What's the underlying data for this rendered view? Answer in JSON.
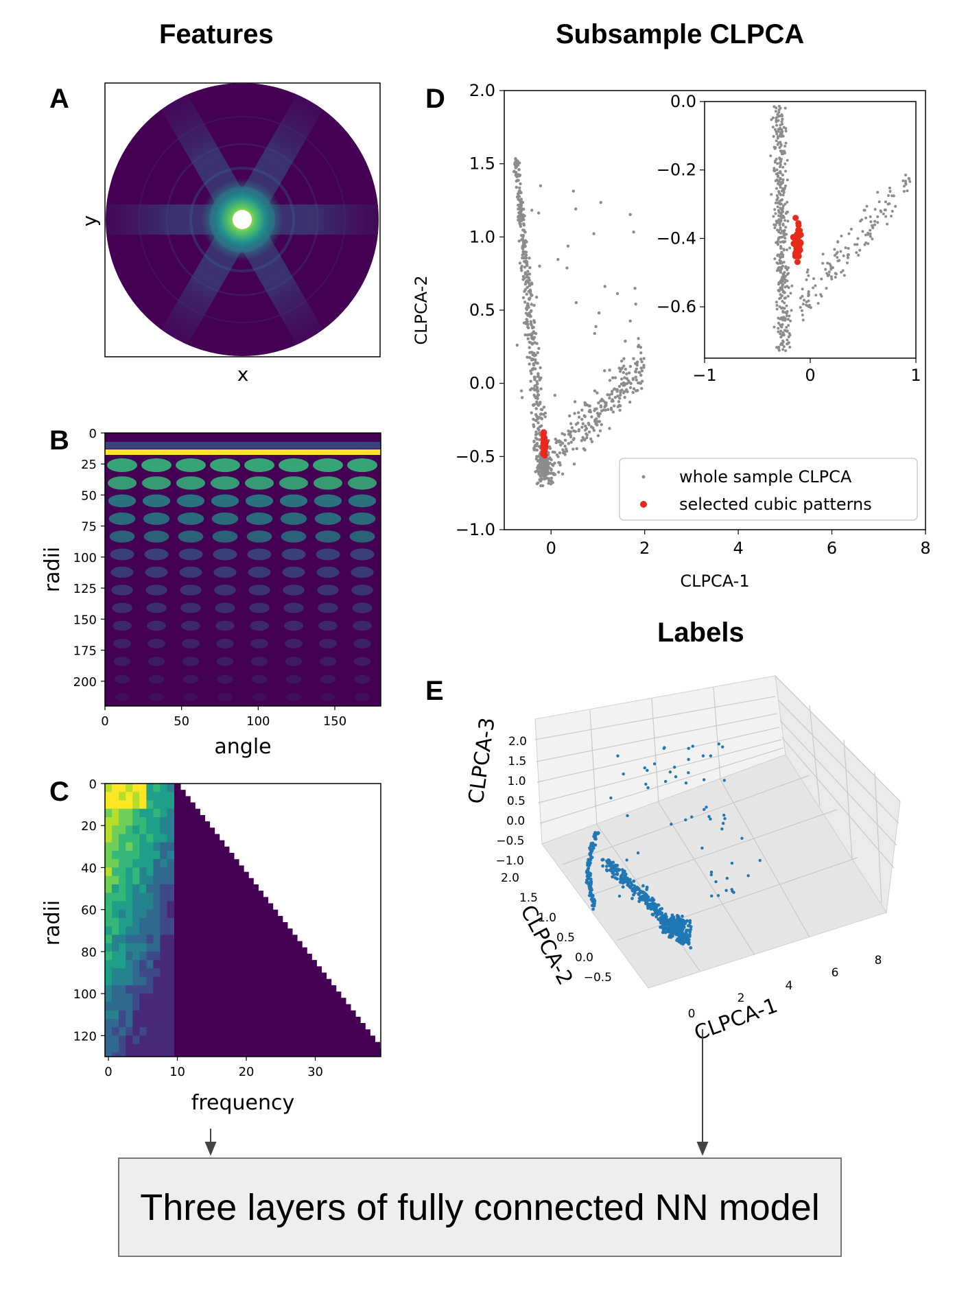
{
  "titles": {
    "features": "Features",
    "subsample": "Subsample CLPCA",
    "labels": "Labels"
  },
  "panels": {
    "a": {
      "letter": "A",
      "xlabel": "x",
      "ylabel": "y"
    },
    "b": {
      "letter": "B",
      "xlabel": "angle",
      "ylabel": "radii",
      "xticks": [
        "0",
        "50",
        "100",
        "150"
      ],
      "yticks": [
        "0",
        "25",
        "50",
        "75",
        "100",
        "125",
        "150",
        "175",
        "200"
      ]
    },
    "c": {
      "letter": "C",
      "xlabel": "frequency",
      "ylabel": "radii",
      "xticks": [
        "0",
        "10",
        "20",
        "30"
      ],
      "yticks": [
        "0",
        "20",
        "40",
        "60",
        "80",
        "100",
        "120"
      ]
    },
    "d": {
      "letter": "D",
      "xlabel": "CLPCA-1",
      "ylabel": "CLPCA-2",
      "xticks": [
        "0",
        "2",
        "4",
        "6",
        "8"
      ],
      "yticks": [
        "2.0",
        "1.5",
        "1.0",
        "0.5",
        "0.0",
        "−0.5",
        "−1.0"
      ],
      "inset_xticks": [
        "−1",
        "0",
        "1"
      ],
      "inset_yticks": [
        "0.0",
        "−0.2",
        "−0.4",
        "−0.6"
      ],
      "legend": [
        "whole sample CLPCA",
        "selected cubic patterns"
      ]
    },
    "e": {
      "letter": "E",
      "xlabel": "CLPCA-1",
      "ylabel": "CLPCA-2",
      "zlabel": "CLPCA-3",
      "xticks": [
        "0",
        "2",
        "4",
        "6",
        "8"
      ],
      "yticks": [
        "−0.5",
        "0.0",
        "0.5",
        "1.0",
        "1.5",
        "2.0"
      ],
      "zticks": [
        "2.0",
        "1.5",
        "1.0",
        "0.5",
        "0.0",
        "−0.5",
        "−1.0"
      ]
    }
  },
  "model_box": {
    "text": "Three layers of fully connected NN model"
  },
  "colors": {
    "viridis_dark": "#440154",
    "viridis_mid": "#21918c",
    "viridis_bright": "#fde725",
    "gray_points": "#8c8c8c",
    "red_points": "#e8291c",
    "blue_points": "#1f77b4"
  },
  "chart_data": [
    {
      "type": "heatmap",
      "title": "Features",
      "xlabel": "x",
      "ylabel": "y"
    },
    {
      "type": "heatmap",
      "xlabel": "angle",
      "ylabel": "radii",
      "xlim": [
        0,
        180
      ],
      "ylim": [
        220,
        0
      ]
    },
    {
      "type": "heatmap",
      "xlabel": "frequency",
      "ylabel": "radii",
      "xlim": [
        0,
        40
      ],
      "ylim": [
        130,
        0
      ]
    },
    {
      "type": "scatter",
      "title": "Subsample CLPCA",
      "xlabel": "CLPCA-1",
      "ylabel": "CLPCA-2",
      "xlim": [
        -1,
        8
      ],
      "ylim": [
        -1.0,
        2.0
      ],
      "series": [
        {
          "name": "whole sample CLPCA",
          "x": [
            -0.8,
            -0.7,
            -0.6,
            -0.5,
            -0.4,
            -0.3,
            -0.2,
            0.0,
            0.2,
            0.5,
            1.0,
            1.5,
            2.0
          ],
          "y": [
            1.55,
            1.3,
            1.0,
            0.7,
            0.4,
            0.1,
            -0.2,
            -0.5,
            -0.6,
            -0.4,
            -0.2,
            0.0,
            0.3
          ]
        },
        {
          "name": "selected cubic patterns",
          "x": [
            -0.2,
            -0.15,
            -0.1,
            -0.12,
            -0.18
          ],
          "y": [
            -0.3,
            -0.38,
            -0.45,
            -0.5,
            -0.55
          ]
        }
      ],
      "inset": {
        "xlim": [
          -1,
          1
        ],
        "ylim": [
          -0.75,
          0.0
        ]
      }
    },
    {
      "type": "scatter",
      "title": "Labels",
      "xlabel": "CLPCA-1",
      "ylabel": "CLPCA-2",
      "zlabel": "CLPCA-3",
      "xlim": [
        -1,
        8
      ],
      "ylim": [
        -0.5,
        2.0
      ],
      "zlim": [
        -1.0,
        2.0
      ]
    }
  ]
}
